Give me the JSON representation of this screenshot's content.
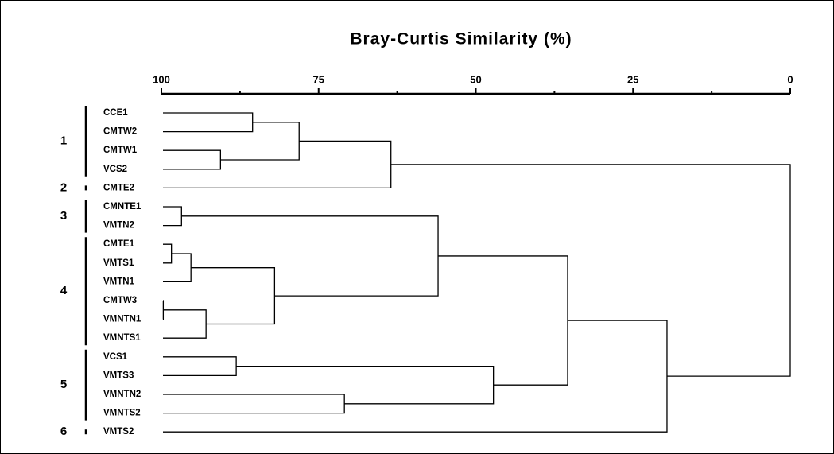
{
  "chart_data": {
    "type": "dendrogram",
    "title": "Bray-Curtis Similarity (%)",
    "xlim": [
      100,
      0
    ],
    "xticks": [
      100,
      75,
      50,
      25,
      0
    ],
    "xminor_ticks": [
      87.5,
      62.5,
      37.5,
      12.5
    ],
    "color": "#000000",
    "leaves": [
      "CCE1",
      "CMTW2",
      "CMTW1",
      "VCS2",
      "CMTE2",
      "CMNTE1",
      "VMTN2",
      "CMTE1",
      "VMTS1",
      "VMTN1",
      "CMTW3",
      "VMNTN1",
      "VMNTS1",
      "VCS1",
      "VMTS3",
      "VMNTN2",
      "VMNTS2",
      "VMTS2"
    ],
    "merges": [
      {
        "children": [
          0,
          1
        ],
        "height": 85.5
      },
      {
        "children": [
          2,
          3
        ],
        "height": 90.6
      },
      {
        "children": [
          18,
          19
        ],
        "height": 78.1
      },
      {
        "children": [
          20,
          4
        ],
        "height": 63.5
      },
      {
        "children": [
          5,
          6
        ],
        "height": 96.8
      },
      {
        "children": [
          7,
          8
        ],
        "height": 98.4
      },
      {
        "children": [
          23,
          9
        ],
        "height": 95.3
      },
      {
        "children": [
          10,
          11
        ],
        "height": 99.7
      },
      {
        "children": [
          25,
          12
        ],
        "height": 92.9
      },
      {
        "children": [
          24,
          26
        ],
        "height": 82
      },
      {
        "children": [
          22,
          27
        ],
        "height": 56
      },
      {
        "children": [
          13,
          14
        ],
        "height": 88.1
      },
      {
        "children": [
          15,
          16
        ],
        "height": 70.9
      },
      {
        "children": [
          29,
          30
        ],
        "height": 47.2
      },
      {
        "children": [
          28,
          31
        ],
        "height": 35.4
      },
      {
        "children": [
          32,
          17
        ],
        "height": 19.6
      },
      {
        "children": [
          21,
          33
        ],
        "height": 0
      }
    ],
    "groups": [
      {
        "label": "1",
        "leaves": [
          0,
          3
        ]
      },
      {
        "label": "2",
        "leaves": [
          4,
          4
        ]
      },
      {
        "label": "3",
        "leaves": [
          5,
          6
        ]
      },
      {
        "label": "4",
        "leaves": [
          7,
          12
        ]
      },
      {
        "label": "5",
        "leaves": [
          13,
          16
        ]
      },
      {
        "label": "6",
        "leaves": [
          17,
          17
        ]
      }
    ]
  }
}
